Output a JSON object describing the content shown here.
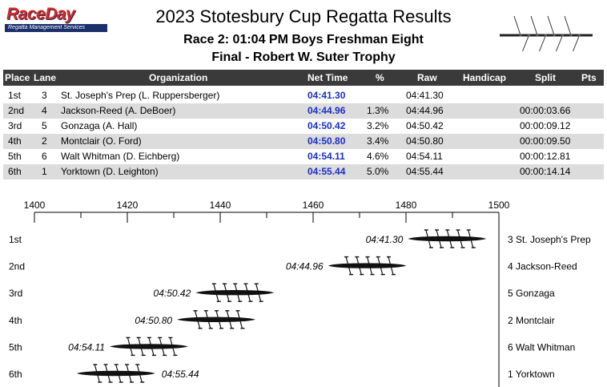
{
  "logo": {
    "text": "RaceDay",
    "subtitle": "Regatta Management Services"
  },
  "header": {
    "title": "2023 Stotesbury Cup Regatta Results",
    "race_line": "Race 2:  01:04 PM  Boys Freshman Eight",
    "final_line": "Final - Robert W. Suter Trophy"
  },
  "table": {
    "columns": [
      "Place",
      "Lane",
      "Organization",
      "Net Time",
      "%",
      "Raw",
      "Handicap",
      "Split",
      "Pts"
    ],
    "rows": [
      {
        "place": "1st",
        "lane": "3",
        "org": "St. Joseph's Prep  (L. Ruppersberger)",
        "net": "04:41.30",
        "pct": "",
        "raw": "04:41.30",
        "split": ""
      },
      {
        "place": "2nd",
        "lane": "4",
        "org": "Jackson-Reed  (A. DeBoer)",
        "net": "04:44.96",
        "pct": "1.3%",
        "raw": "04:44.96",
        "split": "00:00:03.66"
      },
      {
        "place": "3rd",
        "lane": "5",
        "org": "Gonzaga  (A. Hall)",
        "net": "04:50.42",
        "pct": "3.2%",
        "raw": "04:50.42",
        "split": "00:00:09.12"
      },
      {
        "place": "4th",
        "lane": "2",
        "org": "Montclair  (O. Ford)",
        "net": "04:50.80",
        "pct": "3.4%",
        "raw": "04:50.80",
        "split": "00:00:09.50"
      },
      {
        "place": "5th",
        "lane": "6",
        "org": "Walt Whitman  (D. Eichberg)",
        "net": "04:54.11",
        "pct": "4.6%",
        "raw": "04:54.11",
        "split": "00:00:12.81"
      },
      {
        "place": "6th",
        "lane": "1",
        "org": "Yorktown  (D. Leighton)",
        "net": "04:55.44",
        "pct": "5.0%",
        "raw": "04:55.44",
        "split": "00:00:14.14"
      }
    ]
  },
  "chart_data": {
    "type": "scatter",
    "xlim": [
      1400,
      1500
    ],
    "x_ticks": [
      "1400",
      "1420",
      "1440",
      "1460",
      "1480",
      "1500"
    ],
    "boats": [
      {
        "place": "1st",
        "time": "04:41.30",
        "team": "3 St. Joseph's Prep",
        "x": 1497.3,
        "label_side": "left"
      },
      {
        "place": "2nd",
        "time": "04:44.96",
        "team": "4 Jackson-Reed",
        "x": 1480.1,
        "label_side": "left"
      },
      {
        "place": "3rd",
        "time": "04:50.42",
        "team": "5 Gonzaga",
        "x": 1451.6,
        "label_side": "left"
      },
      {
        "place": "4th",
        "time": "04:50.80",
        "team": "2 Montclair",
        "x": 1447.6,
        "label_side": "left"
      },
      {
        "place": "5th",
        "time": "04:54.11",
        "team": "6 Walt Whitman",
        "x": 1433.1,
        "label_side": "left"
      },
      {
        "place": "6th",
        "time": "04:55.44",
        "team": "1 Yorktown",
        "x": 1426.0,
        "label_side": "right"
      }
    ]
  }
}
